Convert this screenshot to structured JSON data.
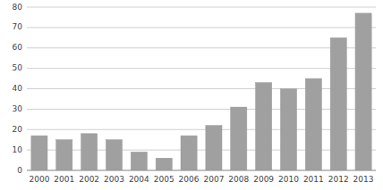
{
  "chart_data": {
    "type": "bar",
    "categories": [
      "2000",
      "2001",
      "2002",
      "2003",
      "2004",
      "2005",
      "2006",
      "2007",
      "2008",
      "2009",
      "2010",
      "2011",
      "2012",
      "2013"
    ],
    "values": [
      17,
      15,
      18,
      15,
      9,
      6,
      17,
      22,
      31,
      43,
      40,
      45,
      65,
      77
    ],
    "color": "#a0a0a0",
    "ylim": [
      0,
      80
    ],
    "yticks": [
      0,
      10,
      20,
      30,
      40,
      50,
      60,
      70,
      80
    ],
    "grid": true
  }
}
